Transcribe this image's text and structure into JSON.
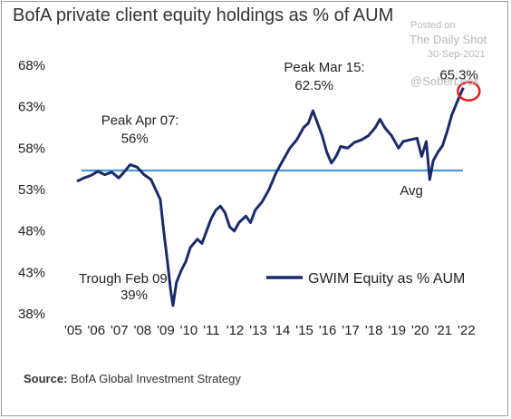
{
  "title": "BofA private client equity holdings as % of AUM",
  "watermark": {
    "line1": "Posted on",
    "line2": "The Daily Shot",
    "line3": "30-Sep-2021",
    "line4": "@SoberLook"
  },
  "source": {
    "label": "Source:",
    "text": " BofA Global Investment Strategy"
  },
  "colors": {
    "series": "#1b2a6b",
    "avg": "#4a9ad6",
    "circle": "#e02020"
  },
  "chart_data": {
    "type": "line",
    "yticks": [
      "68%",
      "63%",
      "58%",
      "53%",
      "48%",
      "43%",
      "38%"
    ],
    "ytick_values": [
      68,
      63,
      58,
      53,
      48,
      43,
      38
    ],
    "xticks": [
      "'05",
      "'06",
      "'07",
      "'08",
      "'09",
      "'10",
      "'11",
      "'12",
      "'13",
      "'14",
      "'15",
      "'16",
      "'17",
      "'18",
      "'19",
      "'20",
      "'21",
      "'22"
    ],
    "ylim": [
      38,
      68
    ],
    "xlim": [
      2005,
      2022
    ],
    "average": 55.3,
    "series": [
      {
        "name": "GWIM Equity as % AUM",
        "points": [
          [
            2005.0,
            54.0
          ],
          [
            2005.3,
            54.4
          ],
          [
            2005.6,
            54.7
          ],
          [
            2005.9,
            55.2
          ],
          [
            2006.2,
            54.8
          ],
          [
            2006.5,
            55.1
          ],
          [
            2006.8,
            54.4
          ],
          [
            2007.0,
            55.0
          ],
          [
            2007.3,
            56.0
          ],
          [
            2007.6,
            55.7
          ],
          [
            2007.9,
            54.8
          ],
          [
            2008.2,
            54.2
          ],
          [
            2008.4,
            53.0
          ],
          [
            2008.6,
            51.8
          ],
          [
            2008.75,
            48.0
          ],
          [
            2008.9,
            44.5
          ],
          [
            2009.05,
            40.8
          ],
          [
            2009.15,
            39.0
          ],
          [
            2009.3,
            41.8
          ],
          [
            2009.5,
            43.2
          ],
          [
            2009.7,
            44.3
          ],
          [
            2009.9,
            46.0
          ],
          [
            2010.2,
            47.0
          ],
          [
            2010.4,
            46.5
          ],
          [
            2010.6,
            48.0
          ],
          [
            2010.8,
            49.5
          ],
          [
            2011.0,
            50.5
          ],
          [
            2011.2,
            51.0
          ],
          [
            2011.4,
            50.2
          ],
          [
            2011.6,
            48.5
          ],
          [
            2011.8,
            48.0
          ],
          [
            2012.0,
            49.0
          ],
          [
            2012.3,
            49.8
          ],
          [
            2012.5,
            49.0
          ],
          [
            2012.7,
            50.5
          ],
          [
            2013.0,
            51.5
          ],
          [
            2013.3,
            53.0
          ],
          [
            2013.6,
            55.0
          ],
          [
            2013.9,
            56.5
          ],
          [
            2014.2,
            58.0
          ],
          [
            2014.5,
            59.0
          ],
          [
            2014.8,
            60.5
          ],
          [
            2015.0,
            61.0
          ],
          [
            2015.2,
            62.5
          ],
          [
            2015.4,
            61.0
          ],
          [
            2015.6,
            59.5
          ],
          [
            2015.8,
            57.5
          ],
          [
            2016.0,
            56.2
          ],
          [
            2016.2,
            57.0
          ],
          [
            2016.4,
            58.2
          ],
          [
            2016.7,
            58.0
          ],
          [
            2017.0,
            58.7
          ],
          [
            2017.3,
            59.0
          ],
          [
            2017.6,
            59.5
          ],
          [
            2017.9,
            60.5
          ],
          [
            2018.1,
            61.5
          ],
          [
            2018.3,
            60.5
          ],
          [
            2018.6,
            59.5
          ],
          [
            2018.9,
            58.0
          ],
          [
            2019.1,
            58.8
          ],
          [
            2019.4,
            59.0
          ],
          [
            2019.7,
            59.2
          ],
          [
            2019.9,
            57.0
          ],
          [
            2020.1,
            58.8
          ],
          [
            2020.25,
            54.2
          ],
          [
            2020.4,
            56.5
          ],
          [
            2020.6,
            57.5
          ],
          [
            2020.8,
            58.3
          ],
          [
            2021.0,
            60.0
          ],
          [
            2021.2,
            62.0
          ],
          [
            2021.5,
            64.0
          ],
          [
            2021.7,
            65.3
          ]
        ]
      }
    ],
    "annotations": [
      {
        "text": "Peak Apr 07:",
        "x": 2007.3,
        "y": 56.0
      },
      {
        "text": "56%",
        "x": 2007.3,
        "y": 56.0
      },
      {
        "text": "Trough Feb 09:",
        "x": 2009.15,
        "y": 39.0
      },
      {
        "text": "39%",
        "x": 2009.15,
        "y": 39.0
      },
      {
        "text": "Peak Mar 15:",
        "x": 2015.2,
        "y": 62.5
      },
      {
        "text": "62.5%",
        "x": 2015.2,
        "y": 62.5
      },
      {
        "text": "65.3%",
        "x": 2021.7,
        "y": 65.3
      },
      {
        "text": "Avg",
        "x": 2020.25,
        "y": 55.3
      }
    ],
    "legend": {
      "label": "GWIM Equity as % AUM",
      "position": "bottom-right"
    },
    "grid": false
  }
}
